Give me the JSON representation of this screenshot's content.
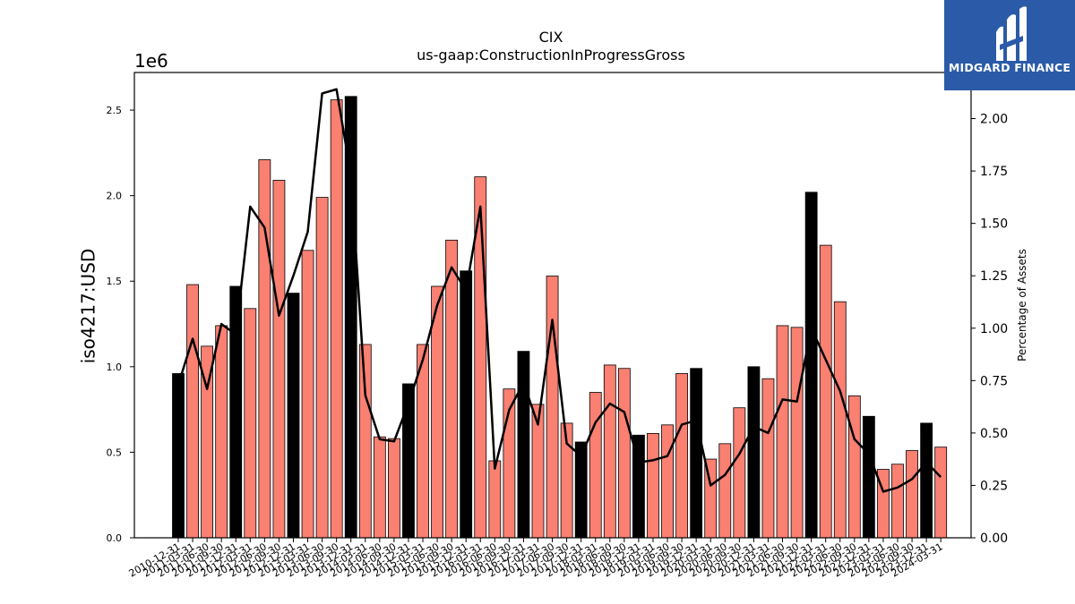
{
  "chart_data": {
    "type": "bar",
    "title": "CIX",
    "subtitle": "us-gaap:ConstructionInProgressGross",
    "ylabel": "iso4217:USD",
    "y_exponent_label": "1e6",
    "y2label": "Percentage of Assets",
    "ylim": [
      0,
      2720000
    ],
    "y2lim": [
      0,
      2.22
    ],
    "yticks": [
      "0.0",
      "0.5",
      "1.0",
      "1.5",
      "2.0",
      "2.5"
    ],
    "y2ticks": [
      "0.00",
      "0.25",
      "0.50",
      "0.75",
      "1.00",
      "1.25",
      "1.50",
      "1.75",
      "2.00"
    ],
    "bar_colors": {
      "annual": "#000000",
      "quarterly": "#fa8072"
    },
    "line_color": "#000000",
    "categories": [
      "2010-12-31",
      "2011-03-31",
      "2011-06-30",
      "2011-09-30",
      "2011-12-31",
      "2012-03-31",
      "2012-06-30",
      "2012-09-30",
      "2012-12-31",
      "2013-03-31",
      "2013-06-30",
      "2013-09-30",
      "2013-12-31",
      "2014-03-31",
      "2014-06-30",
      "2014-09-30",
      "2014-12-31",
      "2015-03-31",
      "2015-06-30",
      "2015-09-30",
      "2015-12-31",
      "2016-03-31",
      "2016-06-30",
      "2016-09-30",
      "2016-12-31",
      "2017-03-31",
      "2017-06-30",
      "2017-09-30",
      "2017-12-31",
      "2018-03-31",
      "2018-06-30",
      "2018-09-30",
      "2018-12-31",
      "2019-03-31",
      "2019-06-30",
      "2019-09-30",
      "2019-12-31",
      "2020-03-31",
      "2020-06-30",
      "2020-09-30",
      "2020-12-31",
      "2021-03-31",
      "2021-06-30",
      "2021-09-30",
      "2021-12-31",
      "2022-03-31",
      "2022-06-30",
      "2022-09-30",
      "2022-12-31",
      "2023-03-31",
      "2023-06-30",
      "2023-09-30",
      "2023-12-31",
      "2024-03-31"
    ],
    "values": [
      960000,
      1480000,
      1120000,
      1240000,
      1470000,
      1340000,
      2210000,
      2090000,
      1430000,
      1680000,
      1990000,
      2560000,
      2580000,
      1130000,
      590000,
      580000,
      900000,
      1130000,
      1470000,
      1740000,
      1560000,
      2110000,
      450000,
      870000,
      1090000,
      780000,
      1530000,
      670000,
      560000,
      850000,
      1010000,
      990000,
      600000,
      610000,
      660000,
      960000,
      990000,
      460000,
      550000,
      760000,
      1000000,
      930000,
      1240000,
      1230000,
      2020000,
      1710000,
      1380000,
      830000,
      710000,
      400000,
      430000,
      510000,
      670000,
      530000
    ],
    "annual_flags": [
      true,
      false,
      false,
      false,
      true,
      false,
      false,
      false,
      true,
      false,
      false,
      false,
      true,
      false,
      false,
      false,
      true,
      false,
      false,
      false,
      true,
      false,
      false,
      false,
      true,
      false,
      false,
      false,
      true,
      false,
      false,
      false,
      true,
      false,
      false,
      false,
      true,
      false,
      false,
      false,
      true,
      false,
      false,
      false,
      true,
      false,
      false,
      false,
      true,
      false,
      false,
      false,
      true,
      false
    ],
    "pct_of_assets": [
      0.73,
      0.95,
      0.71,
      1.02,
      0.97,
      1.58,
      1.48,
      1.06,
      1.25,
      1.46,
      2.12,
      2.14,
      1.73,
      0.68,
      0.47,
      0.46,
      0.64,
      0.85,
      1.11,
      1.29,
      1.18,
      1.58,
      0.33,
      0.61,
      0.74,
      0.54,
      1.04,
      0.45,
      0.39,
      0.55,
      0.64,
      0.6,
      0.36,
      0.37,
      0.39,
      0.54,
      0.56,
      0.25,
      0.3,
      0.4,
      0.53,
      0.5,
      0.66,
      0.65,
      1.0,
      0.85,
      0.7,
      0.47,
      0.4,
      0.22,
      0.24,
      0.28,
      0.36,
      0.29
    ]
  },
  "branding": {
    "logo_text": "MIDGARD FINANCE"
  }
}
